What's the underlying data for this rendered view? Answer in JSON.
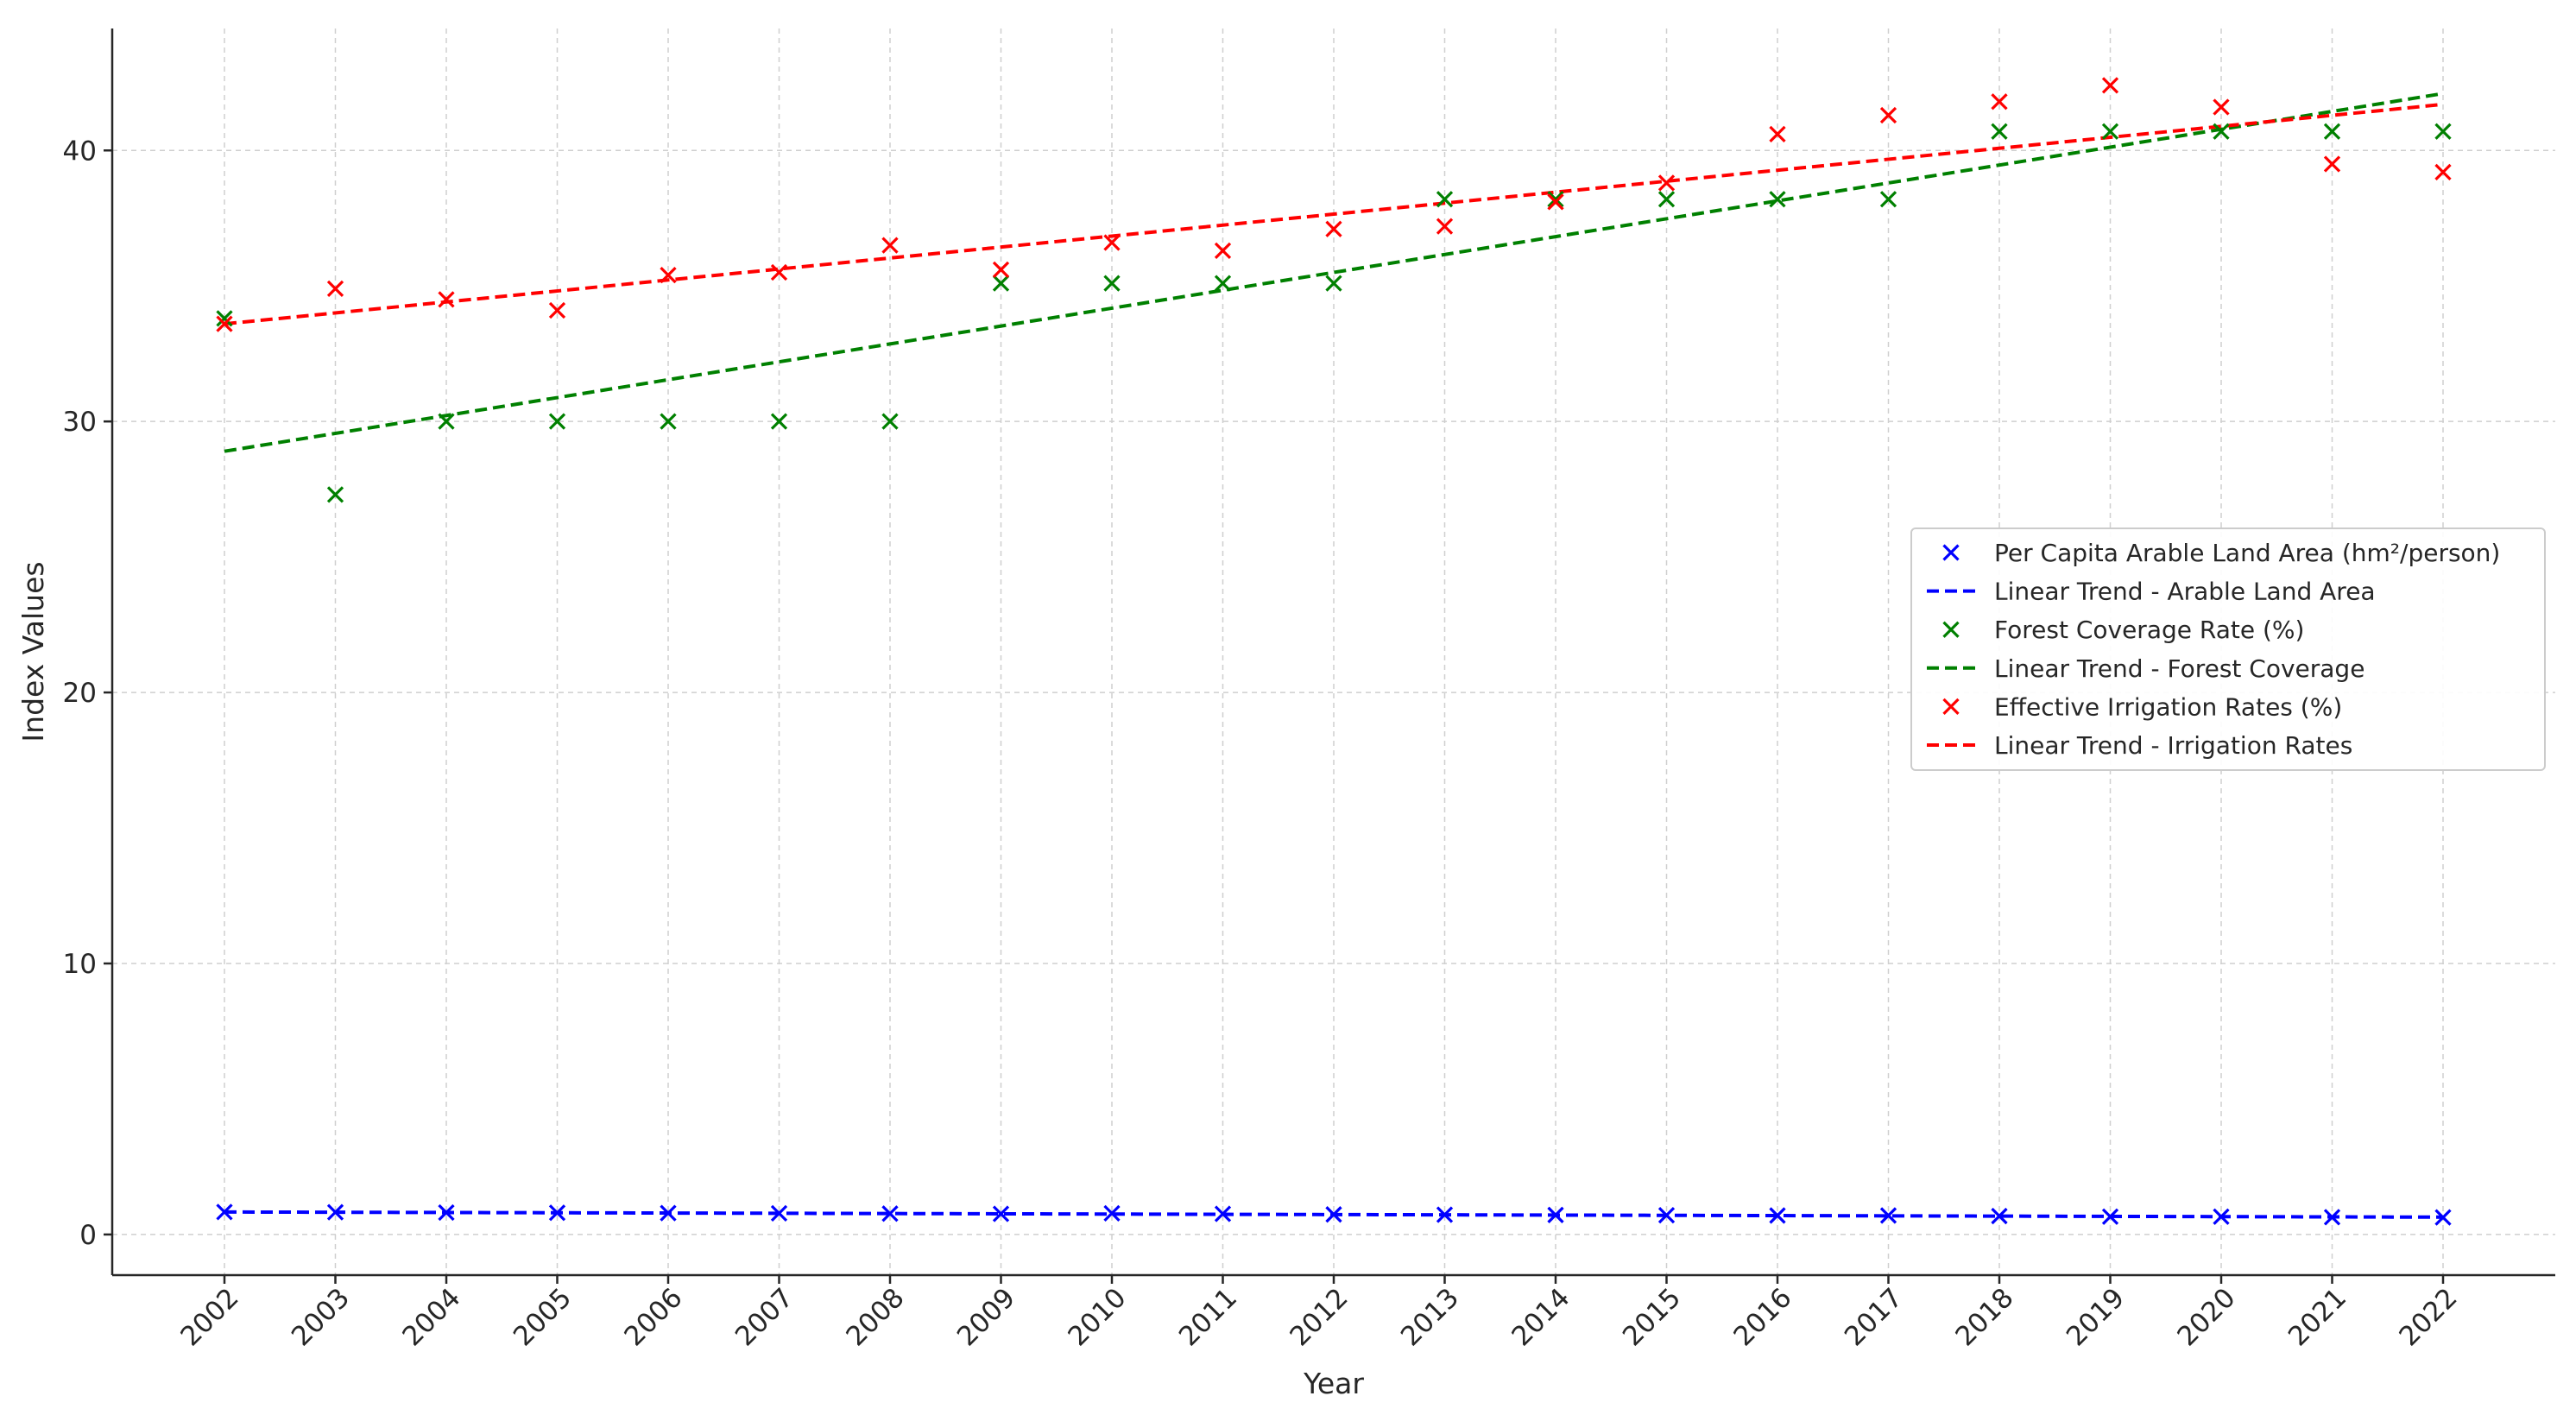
{
  "chart_data": {
    "type": "scatter",
    "x": [
      2002,
      2003,
      2004,
      2005,
      2006,
      2007,
      2008,
      2009,
      2010,
      2011,
      2012,
      2013,
      2014,
      2015,
      2016,
      2017,
      2018,
      2019,
      2020,
      2021,
      2022
    ],
    "xlabel": "Year",
    "ylabel": "Index Values",
    "ylim": [
      -1.5,
      44.5
    ],
    "yticks": [
      0,
      10,
      20,
      30,
      40
    ],
    "grid": true,
    "legend_position": "center-right",
    "series": [
      {
        "name": "Per Capita Arable Land Area (hm²/person)",
        "kind": "scatter",
        "marker": "x",
        "color": "#0000ff",
        "values": [
          0.83,
          0.82,
          0.81,
          0.8,
          0.79,
          0.78,
          0.77,
          0.76,
          0.78,
          0.76,
          0.74,
          0.73,
          0.72,
          0.71,
          0.7,
          0.7,
          0.68,
          0.66,
          0.66,
          0.64,
          0.63
        ]
      },
      {
        "name": "Linear Trend - Arable Land Area",
        "kind": "trend",
        "color": "#0000ff",
        "endpoints": [
          0.83,
          0.64
        ]
      },
      {
        "name": "Forest Coverage Rate (%)",
        "kind": "scatter",
        "marker": "x",
        "color": "#008000",
        "values": [
          33.8,
          27.3,
          30.0,
          30.0,
          30.0,
          30.0,
          30.0,
          35.1,
          35.1,
          35.1,
          35.1,
          38.2,
          38.2,
          38.2,
          38.2,
          38.2,
          40.7,
          40.7,
          40.7,
          40.7,
          40.7
        ]
      },
      {
        "name": "Linear Trend - Forest Coverage",
        "kind": "trend",
        "color": "#008000",
        "endpoints": [
          28.9,
          42.1
        ]
      },
      {
        "name": "Effective Irrigation Rates (%)",
        "kind": "scatter",
        "marker": "x",
        "color": "#ff0000",
        "values": [
          33.6,
          34.9,
          34.5,
          34.1,
          35.4,
          35.5,
          36.5,
          35.6,
          36.6,
          36.3,
          37.1,
          37.2,
          38.1,
          38.8,
          40.6,
          41.3,
          41.8,
          42.4,
          41.6,
          39.5,
          39.2
        ]
      },
      {
        "name": "Linear Trend - Irrigation Rates",
        "kind": "trend",
        "color": "#ff0000",
        "endpoints": [
          33.6,
          41.7
        ]
      }
    ]
  }
}
